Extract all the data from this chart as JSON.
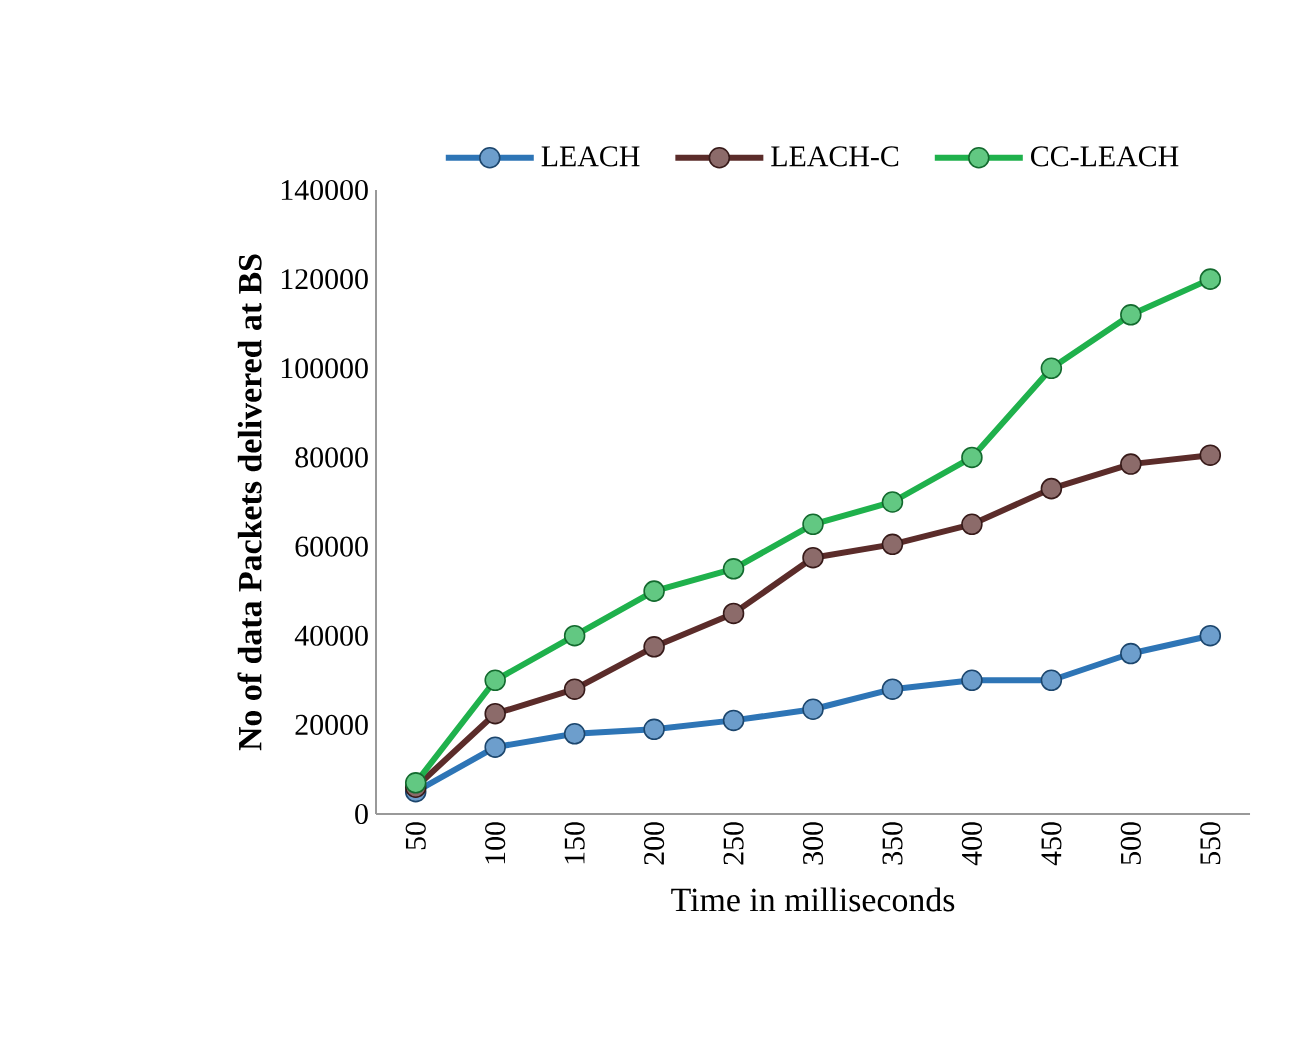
{
  "chart_data": {
    "type": "line",
    "xlabel": "Time in milliseconds",
    "ylabel": "No of data  Packets delivered at BS",
    "categories": [
      "50",
      "100",
      "150",
      "200",
      "250",
      "300",
      "350",
      "400",
      "450",
      "500",
      "550"
    ],
    "series": [
      {
        "name": "LEACH",
        "color": "#2e75b6",
        "values": [
          5000,
          15000,
          18000,
          19000,
          21000,
          23500,
          28000,
          30000,
          30000,
          36000,
          40000
        ]
      },
      {
        "name": "LEACH-C",
        "color": "#5b2c2a",
        "values": [
          6000,
          22500,
          28000,
          37500,
          45000,
          57500,
          60500,
          65000,
          73000,
          78500,
          80500
        ]
      },
      {
        "name": "CC-LEACH",
        "color": "#1fb14c",
        "values": [
          7000,
          30000,
          40000,
          50000,
          55000,
          65000,
          70000,
          80000,
          100000,
          112000,
          120000
        ]
      }
    ],
    "ylim": [
      0,
      140000
    ],
    "yticks": [
      0,
      20000,
      40000,
      60000,
      80000,
      100000,
      120000,
      140000
    ],
    "grid": false,
    "legend": "top",
    "marker": "circle",
    "line_style": "solid"
  }
}
